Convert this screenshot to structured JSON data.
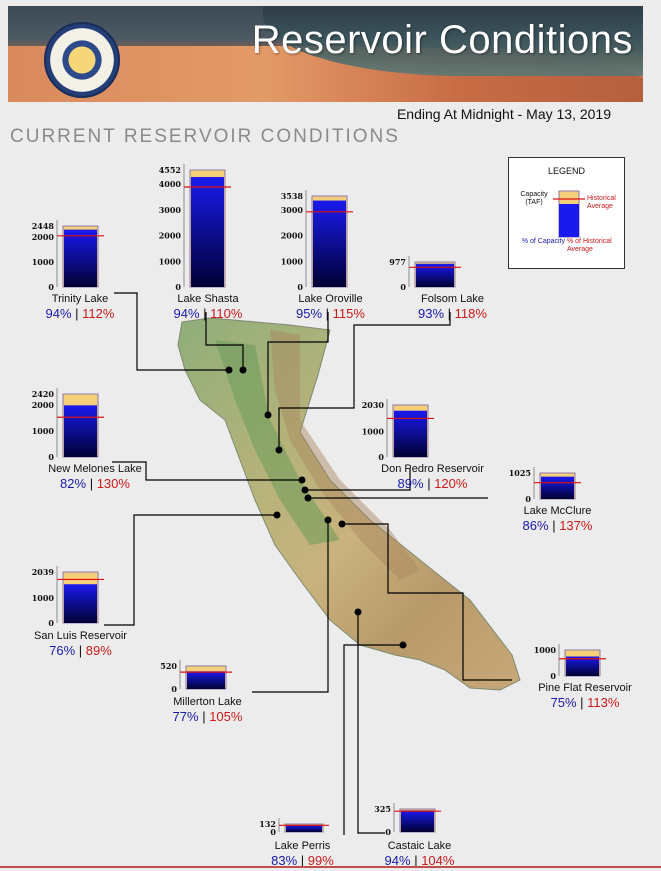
{
  "header": {
    "title": "Reservoir Conditions",
    "date_line": "Ending At Midnight - May 13, 2019",
    "section_title": "CURRENT RESERVOIR CONDITIONS"
  },
  "legend": {
    "title": "LEGEND",
    "capacity_label": "Capacity (TAF)",
    "historical_label": "Historical Average",
    "pct_capacity_label": "% of Capacity",
    "pct_hist_label": "% of Historical Average"
  },
  "colors": {
    "storage_top": "#1a1aee",
    "storage_bottom": "#000033",
    "capacity_fill": "#f5cf7a",
    "capacity_border": "#8c7aa8",
    "hist_line": "#e01010",
    "pct_capacity": "#1a1aa8",
    "pct_hist": "#cc1a1a"
  },
  "chart_data": {
    "type": "bar",
    "units": "TAF",
    "reservoirs": [
      {
        "name": "Trinity Lake",
        "capacity": 2448,
        "ticks": [
          0,
          1000,
          2000,
          2448
        ],
        "pct_capacity": "94%",
        "pct_hist": "112%",
        "pct_capacity_value": 94,
        "pct_hist_value": 112
      },
      {
        "name": "Lake Shasta",
        "capacity": 4552,
        "ticks": [
          0,
          1000,
          2000,
          3000,
          4000,
          4552
        ],
        "pct_capacity": "94%",
        "pct_hist": "110%",
        "pct_capacity_value": 94,
        "pct_hist_value": 110
      },
      {
        "name": "Lake Oroville",
        "capacity": 3538,
        "ticks": [
          0,
          1000,
          2000,
          3000,
          3538
        ],
        "pct_capacity": "95%",
        "pct_hist": "115%",
        "pct_capacity_value": 95,
        "pct_hist_value": 115
      },
      {
        "name": "Folsom Lake",
        "capacity": 977,
        "ticks": [
          0,
          977
        ],
        "pct_capacity": "93%",
        "pct_hist": "118%",
        "pct_capacity_value": 93,
        "pct_hist_value": 118
      },
      {
        "name": "New Melones Lake",
        "capacity": 2420,
        "ticks": [
          0,
          1000,
          2000,
          2420
        ],
        "pct_capacity": "82%",
        "pct_hist": "130%",
        "pct_capacity_value": 82,
        "pct_hist_value": 130
      },
      {
        "name": "Don Pedro Reservoir",
        "capacity": 2030,
        "ticks": [
          0,
          1000,
          2030
        ],
        "pct_capacity": "89%",
        "pct_hist": "120%",
        "pct_capacity_value": 89,
        "pct_hist_value": 120
      },
      {
        "name": "Lake McClure",
        "capacity": 1025,
        "ticks": [
          0,
          1025
        ],
        "pct_capacity": "86%",
        "pct_hist": "137%",
        "pct_capacity_value": 86,
        "pct_hist_value": 137
      },
      {
        "name": "San Luis Reservoir",
        "capacity": 2039,
        "ticks": [
          0,
          1000,
          2039
        ],
        "pct_capacity": "76%",
        "pct_hist": "89%",
        "pct_capacity_value": 76,
        "pct_hist_value": 89
      },
      {
        "name": "Millerton Lake",
        "capacity": 520,
        "ticks": [
          0,
          520
        ],
        "pct_capacity": "77%",
        "pct_hist": "105%",
        "pct_capacity_value": 77,
        "pct_hist_value": 105
      },
      {
        "name": "Pine Flat Reservoir",
        "capacity": 1000,
        "ticks": [
          0,
          1000
        ],
        "pct_capacity": "75%",
        "pct_hist": "113%",
        "pct_capacity_value": 75,
        "pct_hist_value": 113
      },
      {
        "name": "Lake Perris",
        "capacity": 132,
        "ticks": [
          0,
          132
        ],
        "pct_capacity": "83%",
        "pct_hist": "99%",
        "pct_capacity_value": 83,
        "pct_hist_value": 99
      },
      {
        "name": "Castaic Lake",
        "capacity": 325,
        "ticks": [
          0,
          325
        ],
        "pct_capacity": "94%",
        "pct_hist": "104%",
        "pct_capacity_value": 94,
        "pct_hist_value": 104
      }
    ]
  }
}
